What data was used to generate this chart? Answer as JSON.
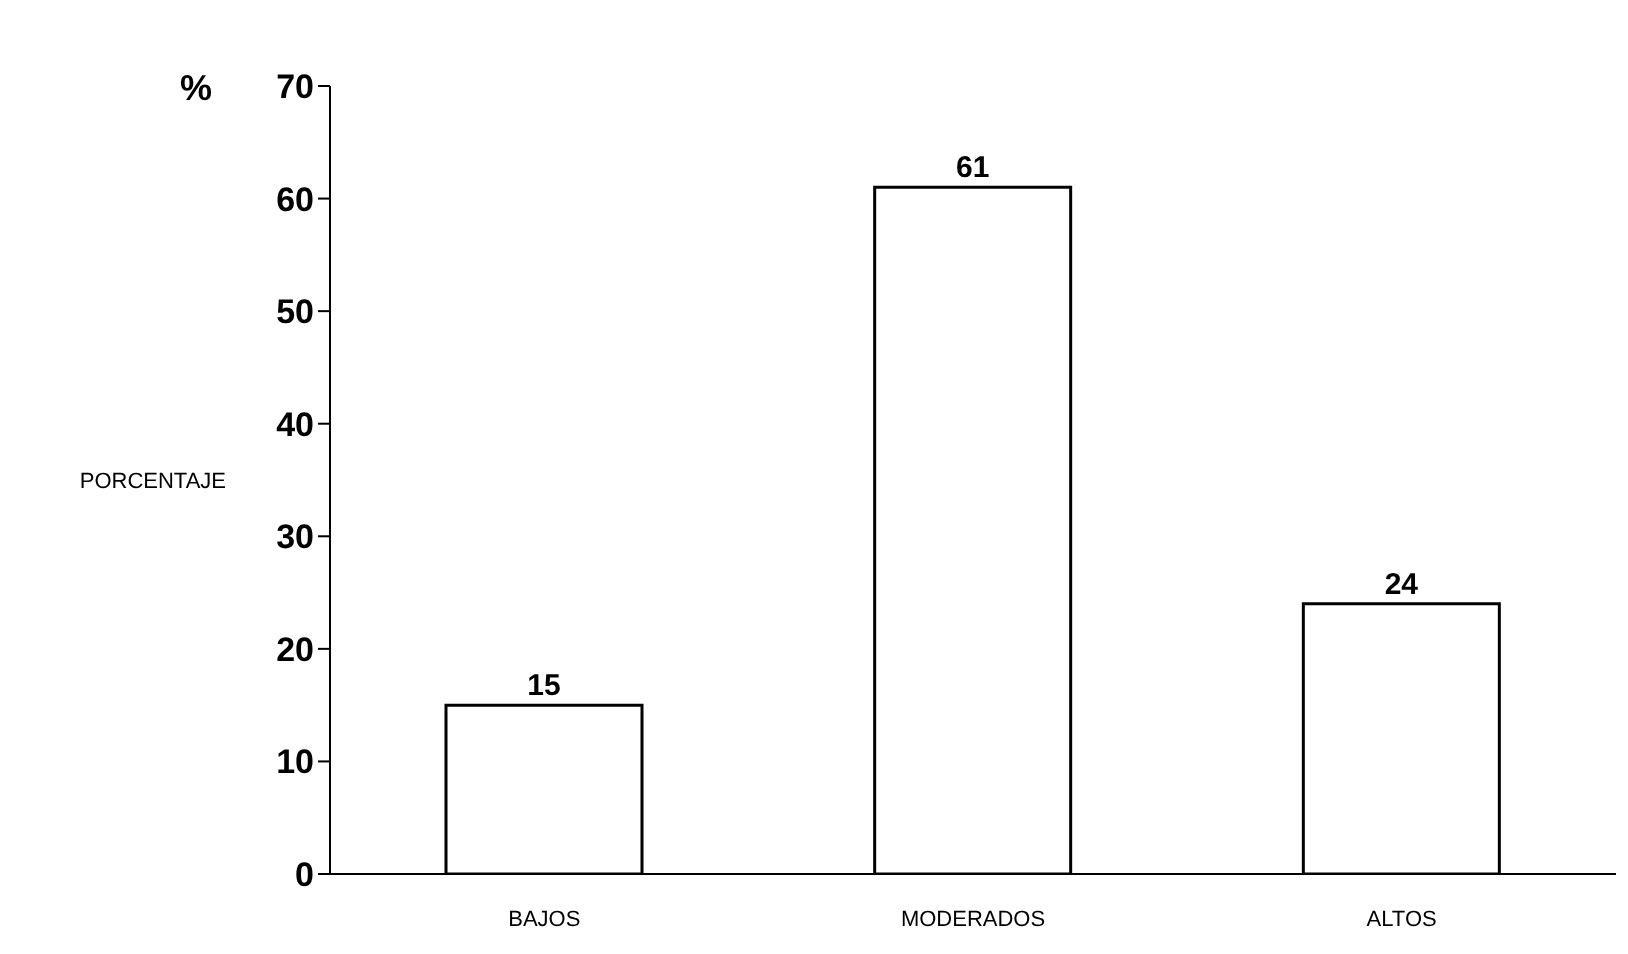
{
  "chart_data": {
    "type": "bar",
    "ylabel": "PORCENTAJE",
    "annotations": [
      "%"
    ],
    "categories": [
      "BAJOS",
      "MODERADOS",
      "ALTOS"
    ],
    "values": [
      15,
      61,
      24
    ],
    "color": "#ffffff",
    "ylim": [
      0,
      70
    ],
    "yticks": [
      0,
      10,
      20,
      30,
      40,
      50,
      60,
      70
    ],
    "grid": false,
    "legend": false,
    "data_labels": true
  }
}
